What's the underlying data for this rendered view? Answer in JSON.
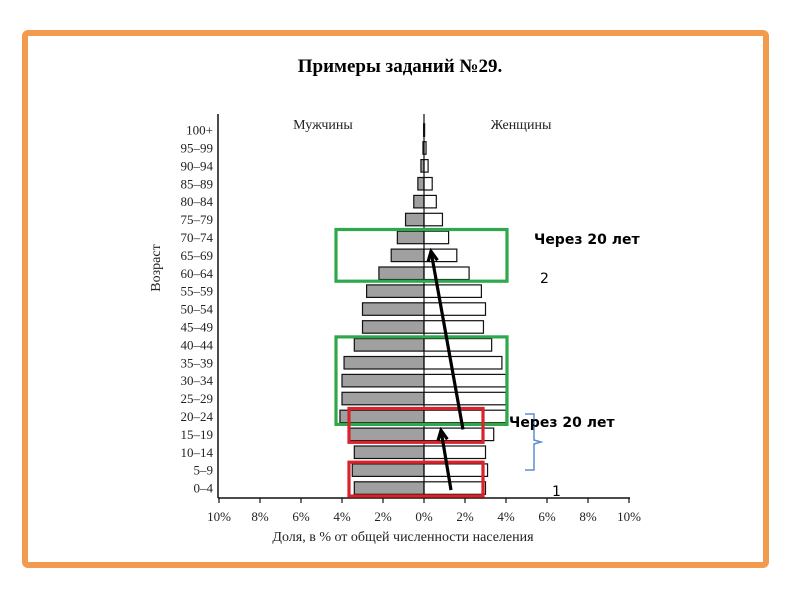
{
  "slide": {
    "title": "Примеры заданий №29.",
    "annotation_top": "Через 20 лет",
    "annotation_bottom": "Через 20 лет",
    "marker_2": "2",
    "marker_1": "1"
  },
  "colors": {
    "frame": "#f29b4f",
    "male_fill": "#a0a0a0",
    "female_fill": "#ffffff",
    "green_box": "#2ea84a",
    "red_box": "#d9232a",
    "arrow": "#000000",
    "brace": "#5b8fd0"
  },
  "chart_data": {
    "type": "bar",
    "subtype": "population-pyramid",
    "left_label": "Мужчины",
    "right_label": "Женщины",
    "ylabel": "Возраст",
    "xlabel": "Доля, в % от общей численности населения",
    "xticks": [
      "10%",
      "8%",
      "6%",
      "4%",
      "2%",
      "0%",
      "2%",
      "4%",
      "6%",
      "8%",
      "10%"
    ],
    "xlim": [
      -10,
      10
    ],
    "categories": [
      "0–4",
      "5–9",
      "10–14",
      "15–19",
      "20–24",
      "25–29",
      "30–34",
      "35–39",
      "40–44",
      "45–49",
      "50–54",
      "55–59",
      "60–64",
      "65–69",
      "70–74",
      "75–79",
      "80–84",
      "85–89",
      "90–94",
      "95–99",
      "100+"
    ],
    "series": [
      {
        "name": "Мужчины",
        "values": [
          3.4,
          3.5,
          3.4,
          3.7,
          4.1,
          4.0,
          4.0,
          3.9,
          3.4,
          3.0,
          3.0,
          2.8,
          2.2,
          1.6,
          1.3,
          0.9,
          0.5,
          0.3,
          0.15,
          0.05,
          0.02
        ]
      },
      {
        "name": "Женщины",
        "values": [
          3.0,
          3.1,
          3.0,
          3.4,
          4.0,
          4.0,
          4.0,
          3.8,
          3.3,
          2.9,
          3.0,
          2.8,
          2.2,
          1.6,
          1.2,
          0.9,
          0.6,
          0.4,
          0.2,
          0.1,
          0.03
        ]
      }
    ],
    "highlights": {
      "green": [
        [
          "60–64",
          "70–74"
        ],
        [
          "20–24",
          "40–44"
        ]
      ],
      "red": [
        [
          "0–4",
          "5–9"
        ],
        [
          "15–19",
          "20–24"
        ]
      ]
    },
    "arrows": [
      [
        "0–4",
        "15–19"
      ],
      [
        "20–24",
        "65–69"
      ]
    ],
    "grid": false
  }
}
